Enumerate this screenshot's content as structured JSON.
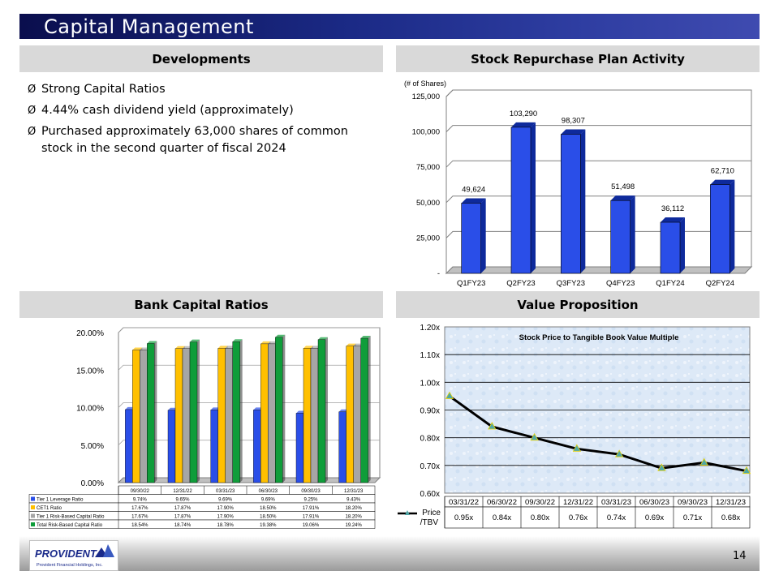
{
  "header": {
    "title": "Capital Management"
  },
  "sections": {
    "developments": "Developments",
    "repurchase": "Stock Repurchase Plan Activity",
    "capital": "Bank Capital Ratios",
    "value": "Value Proposition"
  },
  "developments": {
    "marker": "Ø",
    "bullets": [
      "Strong Capital Ratios",
      " 4.44% cash dividend yield (approximately)",
      "Purchased approximately 63,000 shares of common stock in the second quarter of fiscal 2024"
    ]
  },
  "footer": {
    "page_number": "14",
    "logo_text": "PROVIDENT",
    "logo_subtext": "Provident Financial Holdings, Inc."
  },
  "chart_data": [
    {
      "type": "bar",
      "title": "",
      "ylabel": "(# of Shares)",
      "xlabel": "",
      "categories": [
        "Q1FY23",
        "Q2FY23",
        "Q3FY23",
        "Q4FY23",
        "Q1FY24",
        "Q2FY24"
      ],
      "values": [
        49624,
        103290,
        98307,
        51498,
        36112,
        62710
      ],
      "data_labels": [
        "49,624",
        "103,290",
        "98,307",
        "51,498",
        "36,112",
        "62,710"
      ],
      "ylim": [
        0,
        125000
      ],
      "yticks": [
        0,
        25000,
        50000,
        75000,
        100000,
        125000
      ],
      "ytick_labels": [
        "-",
        "25,000",
        "50,000",
        "75,000",
        "100,000",
        "125,000"
      ],
      "colors": {
        "bar": "#2a4ee8",
        "bar_side": "#0e2a9c"
      }
    },
    {
      "type": "bar",
      "title": "",
      "categories": [
        "09/30/22",
        "12/31/22",
        "03/31/23",
        "06/30/23",
        "09/30/23",
        "12/31/23"
      ],
      "ylim": [
        0,
        20
      ],
      "yticks": [
        0,
        5,
        10,
        15,
        20
      ],
      "ytick_labels": [
        "0.00%",
        "5.00%",
        "10.00%",
        "15.00%",
        "20.00%"
      ],
      "series": [
        {
          "name": "Tier 1 Leverage Ratio",
          "values": [
            9.74,
            9.65,
            9.69,
            9.69,
            9.25,
            9.43
          ],
          "labels": [
            "9.74%",
            "9.65%",
            "9.69%",
            "9.69%",
            "9.25%",
            "9.43%"
          ],
          "color": "#2a4ee8"
        },
        {
          "name": "CET1 Ratio",
          "values": [
            17.67,
            17.87,
            17.9,
            18.5,
            17.91,
            18.2
          ],
          "labels": [
            "17.67%",
            "17.87%",
            "17.90%",
            "18.50%",
            "17.91%",
            "18.20%"
          ],
          "color": "#ffc000"
        },
        {
          "name": "Tier 1 Risk-Based Capital Ratio",
          "values": [
            17.67,
            17.87,
            17.9,
            18.5,
            17.91,
            18.2
          ],
          "labels": [
            "17.67%",
            "17.87%",
            "17.90%",
            "18.50%",
            "17.91%",
            "18.20%"
          ],
          "color": "#a6a6a6"
        },
        {
          "name": "Total Risk-Based Capital Ratio",
          "values": [
            18.54,
            18.74,
            18.78,
            19.38,
            19.06,
            19.24
          ],
          "labels": [
            "18.54%",
            "18.74%",
            "18.78%",
            "19.38%",
            "19.06%",
            "19.24%"
          ],
          "color": "#0f9d3a"
        }
      ],
      "legend": "table-below"
    },
    {
      "type": "line",
      "title": "Stock Price to Tangible Book Value Multiple",
      "categories": [
        "03/31/22",
        "06/30/22",
        "09/30/22",
        "12/31/22",
        "03/31/23",
        "06/30/23",
        "09/30/23",
        "12/31/23"
      ],
      "series": [
        {
          "name": "Price /TBV",
          "values": [
            0.95,
            0.84,
            0.8,
            0.76,
            0.74,
            0.69,
            0.71,
            0.68
          ],
          "labels": [
            "0.95x",
            "0.84x",
            "0.80x",
            "0.76x",
            "0.74x",
            "0.69x",
            "0.71x",
            "0.68x"
          ],
          "color": "#000000",
          "marker_color": "#4fa6a6"
        }
      ],
      "ylim": [
        0.6,
        1.2
      ],
      "yticks": [
        0.6,
        0.7,
        0.8,
        0.9,
        1.0,
        1.1,
        1.2
      ],
      "ytick_labels": [
        "0.60x",
        "0.70x",
        "0.80x",
        "0.90x",
        "1.00x",
        "1.10x",
        "1.20x"
      ],
      "legend": "table-below",
      "grid": true
    }
  ]
}
